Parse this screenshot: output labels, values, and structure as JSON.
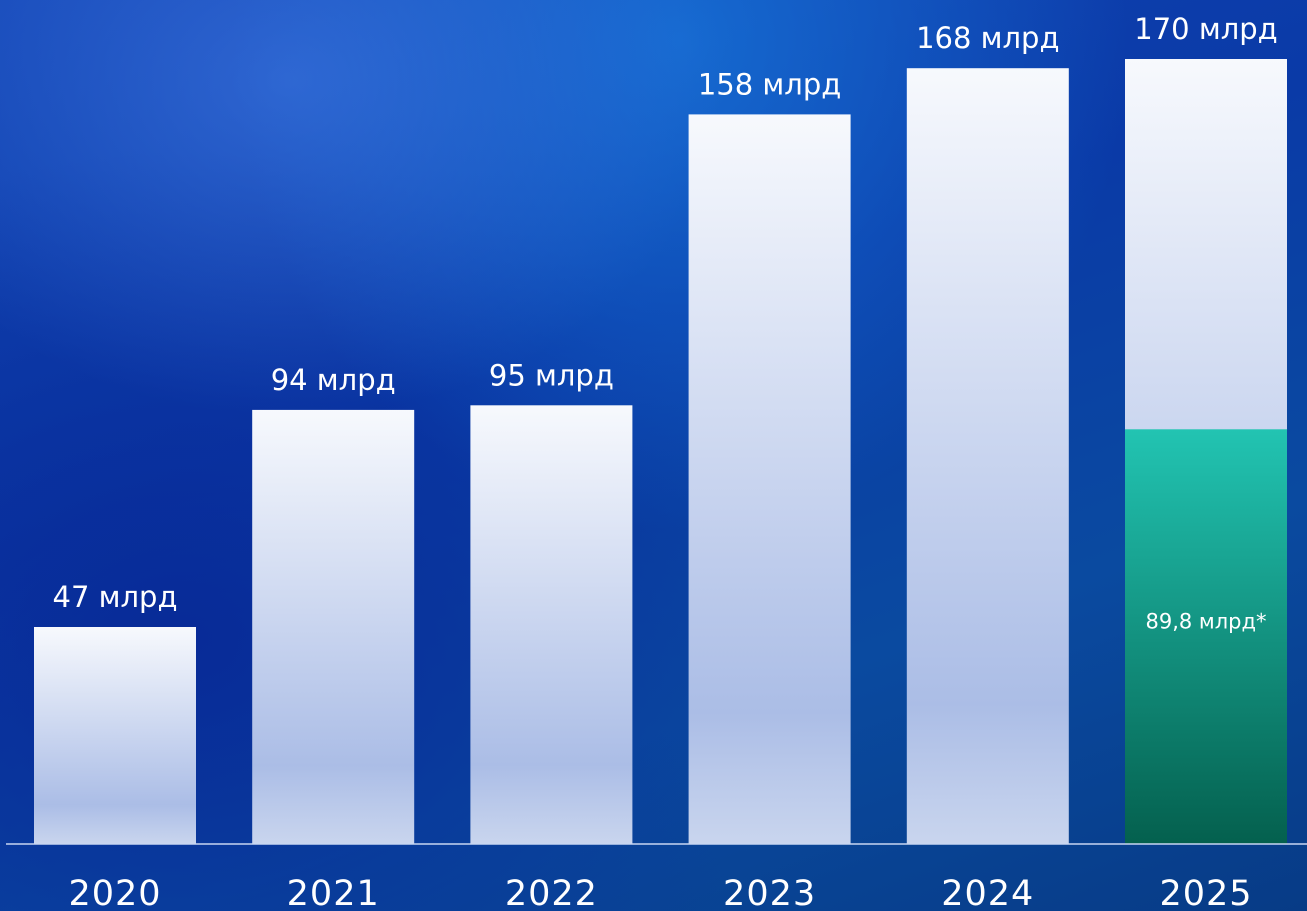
{
  "chart_data": {
    "type": "bar",
    "title": "",
    "xlabel": "",
    "ylabel": "",
    "ylim": [
      0,
      170
    ],
    "grid": false,
    "legend": "none",
    "categories": [
      "2020",
      "2021",
      "2022",
      "2023",
      "2024",
      "2025"
    ],
    "series": [
      {
        "values": [
          47,
          94,
          95,
          158,
          168,
          170
        ],
        "labels": [
          "47 млрд",
          "94 млрд",
          "95 млрд",
          "158 млрд",
          "168 млрд",
          "170 млрд"
        ],
        "color": "#f4f7fd"
      }
    ],
    "highlight": {
      "category": "2025",
      "value": 89.8,
      "label": "89,8 млрд*",
      "color": "#1fbfae"
    }
  },
  "colors": {
    "bar_top": "#f7f9fd",
    "bar_bottom": "#aebfe6",
    "highlight_top": "#22c4b2",
    "highlight_bottom": "#04604e",
    "baseline": "#c8d6f2"
  }
}
